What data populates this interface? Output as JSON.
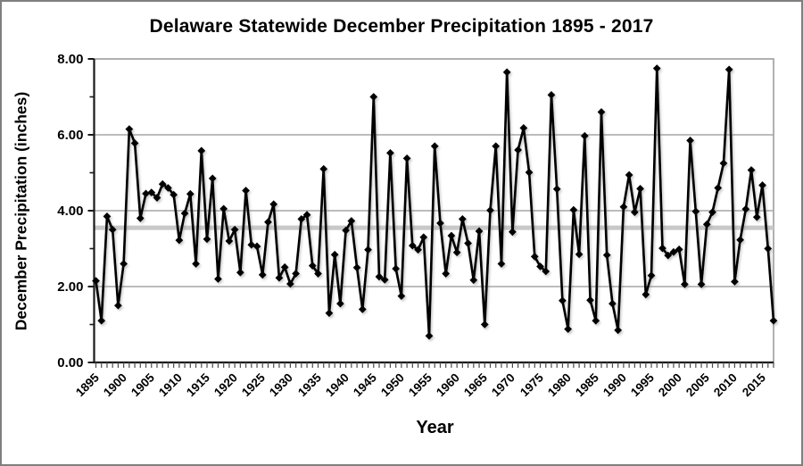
{
  "title": "Delaware Statewide December Precipitation 1895 - 2017",
  "y_axis": {
    "label": "December Precipitation (inches)",
    "tick_labels": [
      "0.00",
      "2.00",
      "4.00",
      "6.00",
      "8.00"
    ],
    "major_ticks": [
      0,
      2,
      4,
      6,
      8
    ],
    "minor_ticks": [
      1,
      3,
      5,
      7
    ]
  },
  "x_axis": {
    "label": "Year",
    "tick_labels": [
      "1895",
      "1900",
      "1905",
      "1910",
      "1915",
      "1920",
      "1925",
      "1930",
      "1935",
      "1940",
      "1945",
      "1950",
      "1955",
      "1960",
      "1965",
      "1970",
      "1975",
      "1980",
      "1985",
      "1990",
      "1995",
      "2000",
      "2005",
      "2010",
      "2015"
    ],
    "label_step_years": 5
  },
  "chart_data": {
    "type": "line",
    "title": "Delaware Statewide December Precipitation 1895 - 2017",
    "xlabel": "Year",
    "ylabel": "December Precipitation (inches)",
    "x_start": 1895,
    "x_end": 2017,
    "ylim": [
      0,
      8
    ],
    "grid": "horizontal-gray",
    "legend": "none",
    "marker": "diamond",
    "series_color": "#000000",
    "gridline_color": "#a6a6a6",
    "mean_line": {
      "value": 3.55,
      "color": "#c8c8c8"
    },
    "values": [
      2.15,
      1.1,
      3.85,
      3.5,
      1.5,
      2.6,
      6.15,
      5.78,
      3.8,
      4.45,
      4.48,
      4.34,
      4.7,
      4.6,
      4.42,
      3.22,
      3.93,
      4.44,
      2.6,
      5.58,
      3.25,
      4.85,
      2.2,
      4.05,
      3.2,
      3.5,
      2.37,
      4.53,
      3.1,
      3.06,
      2.31,
      3.7,
      4.17,
      2.23,
      2.51,
      2.07,
      2.34,
      3.78,
      3.89,
      2.55,
      2.34,
      5.1,
      1.3,
      2.84,
      1.55,
      3.48,
      3.73,
      2.5,
      1.4,
      2.97,
      7.0,
      2.26,
      2.18,
      5.52,
      2.47,
      1.75,
      5.38,
      3.08,
      2.97,
      3.3,
      0.7,
      5.7,
      3.67,
      2.34,
      3.34,
      2.9,
      3.78,
      3.14,
      2.17,
      3.46,
      1.0,
      4.01,
      5.7,
      2.6,
      7.65,
      3.44,
      5.6,
      6.18,
      5.01,
      2.79,
      2.53,
      2.4,
      7.05,
      4.57,
      1.63,
      0.88,
      4.02,
      2.85,
      5.97,
      1.64,
      1.1,
      6.6,
      2.83,
      1.55,
      0.85,
      4.1,
      4.94,
      3.96,
      4.58,
      1.79,
      2.29,
      7.75,
      3.01,
      2.82,
      2.91,
      2.98,
      2.06,
      5.85,
      3.98,
      2.06,
      3.64,
      3.96,
      4.6,
      5.25,
      7.72,
      2.13,
      3.23,
      4.04,
      5.07,
      3.83,
      4.67,
      3.0,
      1.1
    ]
  }
}
